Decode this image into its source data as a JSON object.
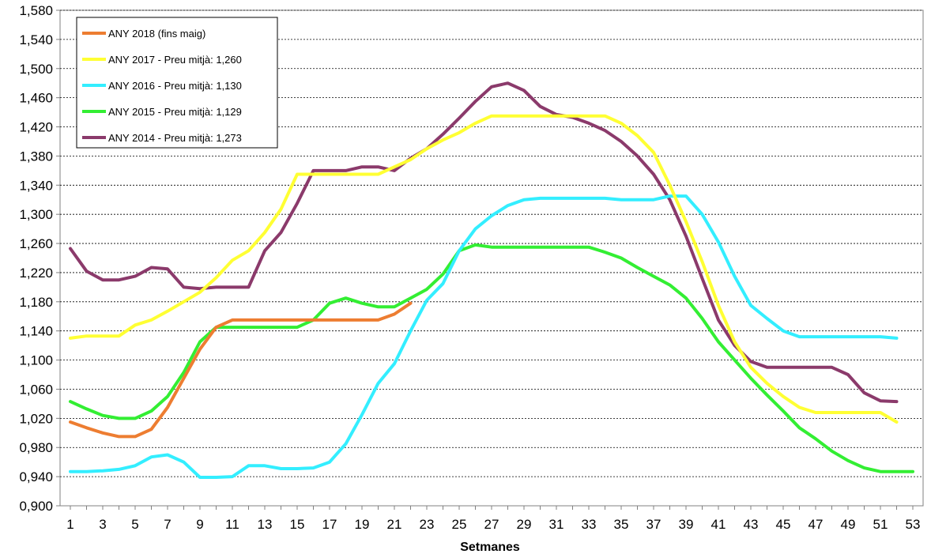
{
  "chart_data": {
    "type": "line",
    "xlabel": "Setmanes",
    "ylabel": "",
    "xlim": [
      1,
      53
    ],
    "ylim": [
      0.9,
      1.58
    ],
    "grid": true,
    "legend_position": "top-left",
    "x_ticks": [
      1,
      3,
      5,
      7,
      9,
      11,
      13,
      15,
      17,
      19,
      21,
      23,
      25,
      27,
      29,
      31,
      33,
      35,
      37,
      39,
      41,
      43,
      45,
      47,
      49,
      51,
      53
    ],
    "y_ticks": [
      0.9,
      0.94,
      0.98,
      1.02,
      1.06,
      1.1,
      1.14,
      1.18,
      1.22,
      1.26,
      1.3,
      1.34,
      1.38,
      1.42,
      1.46,
      1.5,
      1.54,
      1.58
    ],
    "series": [
      {
        "name": "ANY 2018 (fins maig)",
        "color": "#ED7D31",
        "x": [
          1,
          2,
          3,
          4,
          5,
          6,
          7,
          8,
          9,
          10,
          11,
          12,
          13,
          14,
          15,
          16,
          17,
          18,
          19,
          20,
          21,
          22
        ],
        "values": [
          1.015,
          1.007,
          1.0,
          0.995,
          0.995,
          1.005,
          1.035,
          1.075,
          1.115,
          1.145,
          1.155,
          1.155,
          1.155,
          1.155,
          1.155,
          1.155,
          1.155,
          1.155,
          1.155,
          1.155,
          1.163,
          1.178
        ]
      },
      {
        "name": "ANY 2017 - Preu mitjà: 1,260",
        "color": "#FFFF33",
        "x": [
          1,
          2,
          3,
          4,
          5,
          6,
          7,
          8,
          9,
          10,
          11,
          12,
          13,
          14,
          15,
          16,
          17,
          18,
          19,
          20,
          21,
          22,
          23,
          24,
          25,
          26,
          27,
          28,
          29,
          30,
          31,
          32,
          33,
          34,
          35,
          36,
          37,
          38,
          39,
          40,
          41,
          42,
          43,
          44,
          45,
          46,
          47,
          48,
          49,
          50,
          51,
          52
        ],
        "values": [
          1.13,
          1.133,
          1.133,
          1.133,
          1.148,
          1.155,
          1.167,
          1.18,
          1.193,
          1.213,
          1.237,
          1.25,
          1.275,
          1.307,
          1.355,
          1.355,
          1.355,
          1.355,
          1.355,
          1.355,
          1.365,
          1.375,
          1.39,
          1.402,
          1.412,
          1.425,
          1.435,
          1.435,
          1.435,
          1.435,
          1.435,
          1.435,
          1.435,
          1.435,
          1.425,
          1.408,
          1.385,
          1.34,
          1.29,
          1.235,
          1.175,
          1.125,
          1.09,
          1.068,
          1.05,
          1.035,
          1.028,
          1.028,
          1.028,
          1.028,
          1.028,
          1.015
        ]
      },
      {
        "name": "ANY 2016 - Preu mitjà: 1,130",
        "color": "#33EEFF",
        "x": [
          1,
          2,
          3,
          4,
          5,
          6,
          7,
          8,
          9,
          10,
          11,
          12,
          13,
          14,
          15,
          16,
          17,
          18,
          19,
          20,
          21,
          22,
          23,
          24,
          25,
          26,
          27,
          28,
          29,
          30,
          31,
          32,
          33,
          34,
          35,
          36,
          37,
          38,
          39,
          40,
          41,
          42,
          43,
          44,
          45,
          46,
          47,
          48,
          49,
          50,
          51,
          52
        ],
        "values": [
          0.947,
          0.947,
          0.948,
          0.95,
          0.955,
          0.967,
          0.97,
          0.96,
          0.939,
          0.939,
          0.94,
          0.955,
          0.955,
          0.951,
          0.951,
          0.952,
          0.96,
          0.985,
          1.025,
          1.068,
          1.095,
          1.14,
          1.182,
          1.205,
          1.25,
          1.28,
          1.298,
          1.312,
          1.32,
          1.322,
          1.322,
          1.322,
          1.322,
          1.322,
          1.32,
          1.32,
          1.32,
          1.325,
          1.325,
          1.3,
          1.262,
          1.215,
          1.175,
          1.157,
          1.14,
          1.132,
          1.132,
          1.132,
          1.132,
          1.132,
          1.132,
          1.13
        ]
      },
      {
        "name": "ANY 2015 - Preu mitjà: 1,129",
        "color": "#33EE33",
        "x": [
          1,
          2,
          3,
          4,
          5,
          6,
          7,
          8,
          9,
          10,
          11,
          12,
          13,
          14,
          15,
          16,
          17,
          18,
          19,
          20,
          21,
          22,
          23,
          24,
          25,
          26,
          27,
          28,
          29,
          30,
          31,
          32,
          33,
          34,
          35,
          36,
          37,
          38,
          39,
          40,
          41,
          42,
          43,
          44,
          45,
          46,
          47,
          48,
          49,
          50,
          51,
          52,
          53
        ],
        "values": [
          1.043,
          1.033,
          1.024,
          1.02,
          1.02,
          1.03,
          1.05,
          1.083,
          1.125,
          1.145,
          1.145,
          1.145,
          1.145,
          1.145,
          1.145,
          1.155,
          1.178,
          1.185,
          1.178,
          1.173,
          1.173,
          1.185,
          1.197,
          1.218,
          1.25,
          1.258,
          1.255,
          1.255,
          1.255,
          1.255,
          1.255,
          1.255,
          1.255,
          1.248,
          1.24,
          1.227,
          1.215,
          1.203,
          1.185,
          1.157,
          1.125,
          1.1,
          1.075,
          1.052,
          1.03,
          1.007,
          0.992,
          0.975,
          0.962,
          0.952,
          0.947,
          0.947,
          0.947
        ]
      },
      {
        "name": "ANY 2014 - Preu mitjà: 1,273",
        "color": "#8B3A6B",
        "x": [
          1,
          2,
          3,
          4,
          5,
          6,
          7,
          8,
          9,
          10,
          11,
          12,
          13,
          14,
          15,
          16,
          17,
          18,
          19,
          20,
          21,
          22,
          23,
          24,
          25,
          26,
          27,
          28,
          29,
          30,
          31,
          32,
          33,
          34,
          35,
          36,
          37,
          38,
          39,
          40,
          41,
          42,
          43,
          44,
          45,
          46,
          47,
          48,
          49,
          50,
          51,
          52
        ],
        "values": [
          1.253,
          1.222,
          1.21,
          1.21,
          1.215,
          1.227,
          1.225,
          1.2,
          1.198,
          1.2,
          1.2,
          1.2,
          1.25,
          1.275,
          1.315,
          1.36,
          1.36,
          1.36,
          1.365,
          1.365,
          1.36,
          1.377,
          1.39,
          1.41,
          1.432,
          1.455,
          1.475,
          1.48,
          1.47,
          1.448,
          1.437,
          1.433,
          1.425,
          1.415,
          1.4,
          1.38,
          1.355,
          1.32,
          1.27,
          1.212,
          1.155,
          1.12,
          1.098,
          1.09,
          1.09,
          1.09,
          1.09,
          1.09,
          1.08,
          1.055,
          1.044,
          1.043
        ]
      }
    ]
  }
}
